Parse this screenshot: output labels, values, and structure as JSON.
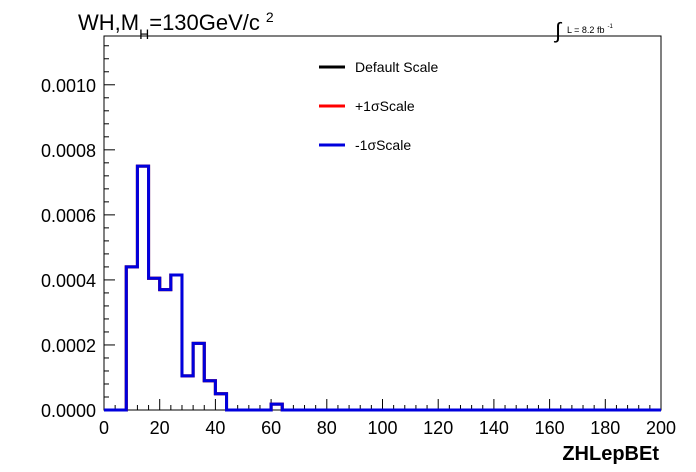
{
  "chart_data": {
    "type": "line",
    "title_main": "WH,M",
    "title_sub": "H",
    "title_rest": "=130GeV/c",
    "title_sup": "2",
    "lumi_label": "L = 8.2 fb",
    "lumi_sup": "-1",
    "xlabel": "ZHLepBEt",
    "xlim": [
      0,
      200
    ],
    "ylim": [
      0,
      0.00115
    ],
    "x_ticks": [
      0,
      20,
      40,
      60,
      80,
      100,
      120,
      140,
      160,
      180,
      200
    ],
    "x_tick_labels": [
      "0",
      "20",
      "40",
      "60",
      "80",
      "100",
      "120",
      "140",
      "160",
      "180",
      "200"
    ],
    "y_ticks": [
      0,
      0.0002,
      0.0004,
      0.0006,
      0.0008,
      0.001
    ],
    "y_tick_labels": [
      "0.0000",
      "0.0002",
      "0.0004",
      "0.0006",
      "0.0008",
      "0.0010"
    ],
    "legend_position": "top-right",
    "bin_edges": [
      0,
      4,
      8,
      12,
      16,
      20,
      24,
      28,
      32,
      36,
      40,
      44,
      48,
      52,
      56,
      60,
      64,
      68,
      72,
      76,
      80,
      84,
      88,
      92,
      96,
      100,
      104,
      108,
      112,
      116,
      120,
      124,
      128,
      132,
      136,
      140,
      144,
      148,
      152,
      156,
      160,
      164,
      168,
      172,
      176,
      180,
      184,
      188,
      192,
      196,
      200
    ],
    "series": [
      {
        "name": "Default Scale",
        "color": "#000000",
        "values": [
          0,
          0,
          0.00044,
          0.00075,
          0.000405,
          0.00037,
          0.000415,
          0.000105,
          0.000205,
          9e-05,
          5e-05,
          0,
          0,
          0,
          0,
          1.8e-05,
          0,
          0,
          0,
          0,
          0,
          0,
          0,
          0,
          0,
          0,
          0,
          0,
          0,
          0,
          0,
          0,
          0,
          0,
          0,
          0,
          0,
          0,
          0,
          0,
          0,
          0,
          0,
          0,
          0,
          0,
          0,
          0,
          0,
          0
        ]
      },
      {
        "name": "+1σScale",
        "color": "#ff0000",
        "values": [
          0,
          0,
          0.00044,
          0.00075,
          0.000405,
          0.00037,
          0.000415,
          0.000105,
          0.000205,
          9e-05,
          5e-05,
          0,
          0,
          0,
          0,
          1.8e-05,
          0,
          0,
          0,
          0,
          0,
          0,
          0,
          0,
          0,
          0,
          0,
          0,
          0,
          0,
          0,
          0,
          0,
          0,
          0,
          0,
          0,
          0,
          0,
          0,
          0,
          0,
          0,
          0,
          0,
          0,
          0,
          0,
          0,
          0
        ]
      },
      {
        "name": "-1σScale",
        "color": "#0000dd",
        "values": [
          0,
          0,
          0.00044,
          0.00075,
          0.000405,
          0.00037,
          0.000415,
          0.000105,
          0.000205,
          9e-05,
          5e-05,
          0,
          0,
          0,
          0,
          1.8e-05,
          0,
          0,
          0,
          0,
          0,
          0,
          0,
          0,
          0,
          0,
          0,
          0,
          0,
          0,
          0,
          0,
          0,
          0,
          0,
          0,
          0,
          0,
          0,
          0,
          0,
          0,
          0,
          0,
          0,
          0,
          0,
          0,
          0,
          0
        ]
      }
    ]
  }
}
